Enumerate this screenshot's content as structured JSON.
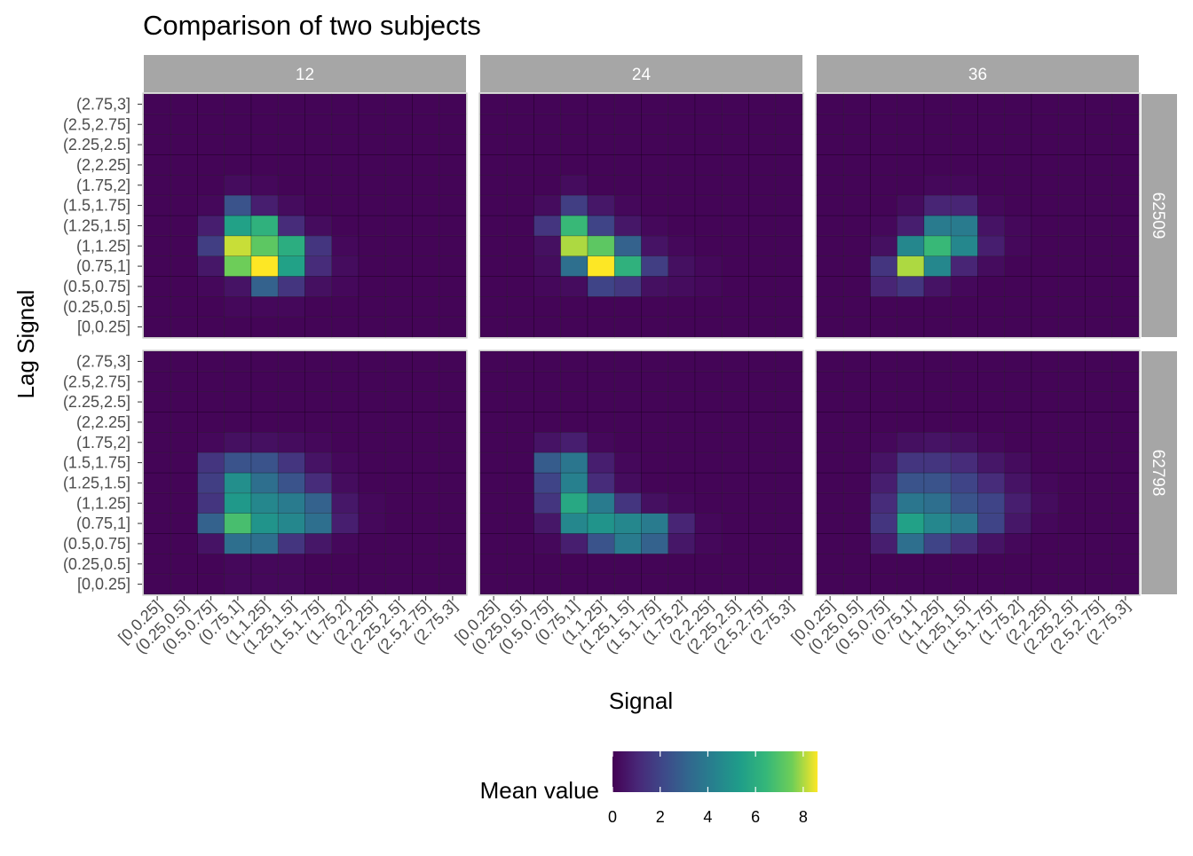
{
  "chart_data": {
    "type": "heatmap",
    "title": "Comparison of two subjects",
    "xlabel": "Signal",
    "ylabel": "Lag Signal",
    "bins": [
      "[0,0.25]",
      "(0.25,0.5]",
      "(0.5,0.75]",
      "(0.75,1]",
      "(1,1.25]",
      "(1.25,1.5]",
      "(1.5,1.75]",
      "(1.75,2]",
      "(2,2.25]",
      "(2.25,2.5]",
      "(2.5,2.75]",
      "(2.75,3]"
    ],
    "col_facets": [
      "12",
      "24",
      "36"
    ],
    "row_facets": [
      "62509",
      "62798"
    ],
    "legend": {
      "title": "Mean value",
      "ticks": [
        0,
        2,
        4,
        6,
        8
      ],
      "range": [
        0,
        8.6
      ],
      "position": "bottom",
      "colormap": "viridis"
    },
    "grid": false,
    "panels": [
      {
        "row": "62509",
        "col": "12",
        "values": [
          [
            0.1,
            0.1,
            0.1,
            0.1,
            0.1,
            0.1,
            0.1,
            0.1,
            0.1,
            0.1,
            0.1,
            0.1
          ],
          [
            0.1,
            0.1,
            0.1,
            0.2,
            0.2,
            0.2,
            0.1,
            0.1,
            0.1,
            0.1,
            0.1,
            0.1
          ],
          [
            0.1,
            0.1,
            0.2,
            0.5,
            3.0,
            1.5,
            0.4,
            0.2,
            0.1,
            0.1,
            0.1,
            0.1
          ],
          [
            0.1,
            0.1,
            0.6,
            7.5,
            8.6,
            5.5,
            1.2,
            0.3,
            0.1,
            0.1,
            0.1,
            0.1
          ],
          [
            0.1,
            0.1,
            1.8,
            8.2,
            7.2,
            6.0,
            1.5,
            0.2,
            0.1,
            0.1,
            0.1,
            0.1
          ],
          [
            0.1,
            0.1,
            0.8,
            5.5,
            6.2,
            1.2,
            0.3,
            0.1,
            0.1,
            0.1,
            0.1,
            0.1
          ],
          [
            0.1,
            0.1,
            0.2,
            2.5,
            0.8,
            0.3,
            0.1,
            0.1,
            0.1,
            0.1,
            0.1,
            0.1
          ],
          [
            0.1,
            0.1,
            0.1,
            0.3,
            0.2,
            0.1,
            0.1,
            0.1,
            0.1,
            0.1,
            0.1,
            0.1
          ],
          [
            0.1,
            0.1,
            0.1,
            0.1,
            0.1,
            0.1,
            0.1,
            0.1,
            0.1,
            0.1,
            0.1,
            0.1
          ],
          [
            0.1,
            0.1,
            0.1,
            0.1,
            0.1,
            0.1,
            0.1,
            0.1,
            0.1,
            0.1,
            0.1,
            0.1
          ],
          [
            0.1,
            0.1,
            0.1,
            0.1,
            0.1,
            0.1,
            0.1,
            0.1,
            0.1,
            0.1,
            0.1,
            0.1
          ],
          [
            0.1,
            0.1,
            0.1,
            0.1,
            0.1,
            0.1,
            0.1,
            0.1,
            0.1,
            0.1,
            0.1,
            0.1
          ]
        ]
      },
      {
        "row": "62509",
        "col": "24",
        "values": [
          [
            0.1,
            0.1,
            0.1,
            0.1,
            0.1,
            0.1,
            0.1,
            0.1,
            0.1,
            0.1,
            0.1,
            0.1
          ],
          [
            0.1,
            0.1,
            0.1,
            0.1,
            0.1,
            0.1,
            0.1,
            0.1,
            0.1,
            0.1,
            0.1,
            0.1
          ],
          [
            0.1,
            0.1,
            0.2,
            0.3,
            2.0,
            1.6,
            0.4,
            0.3,
            0.2,
            0.1,
            0.1,
            0.1
          ],
          [
            0.1,
            0.1,
            0.3,
            3.5,
            8.6,
            6.2,
            1.8,
            0.4,
            0.2,
            0.1,
            0.1,
            0.1
          ],
          [
            0.1,
            0.1,
            0.4,
            8.0,
            7.2,
            3.0,
            0.5,
            0.2,
            0.1,
            0.1,
            0.1,
            0.1
          ],
          [
            0.1,
            0.1,
            1.5,
            6.5,
            2.0,
            0.6,
            0.2,
            0.1,
            0.1,
            0.1,
            0.1,
            0.1
          ],
          [
            0.1,
            0.1,
            0.3,
            1.8,
            0.6,
            0.2,
            0.1,
            0.1,
            0.1,
            0.1,
            0.1,
            0.1
          ],
          [
            0.1,
            0.1,
            0.1,
            0.3,
            0.1,
            0.1,
            0.1,
            0.1,
            0.1,
            0.1,
            0.1,
            0.1
          ],
          [
            0.1,
            0.1,
            0.1,
            0.1,
            0.1,
            0.1,
            0.1,
            0.1,
            0.1,
            0.1,
            0.1,
            0.1
          ],
          [
            0.1,
            0.1,
            0.1,
            0.1,
            0.1,
            0.1,
            0.1,
            0.1,
            0.1,
            0.1,
            0.1,
            0.1
          ],
          [
            0.1,
            0.1,
            0.1,
            0.1,
            0.1,
            0.1,
            0.1,
            0.1,
            0.1,
            0.1,
            0.1,
            0.1
          ],
          [
            0.1,
            0.1,
            0.1,
            0.1,
            0.1,
            0.1,
            0.1,
            0.1,
            0.1,
            0.1,
            0.1,
            0.1
          ]
        ]
      },
      {
        "row": "62509",
        "col": "36",
        "values": [
          [
            0.1,
            0.1,
            0.1,
            0.1,
            0.1,
            0.1,
            0.1,
            0.1,
            0.1,
            0.1,
            0.1,
            0.1
          ],
          [
            0.1,
            0.1,
            0.1,
            0.1,
            0.1,
            0.1,
            0.1,
            0.1,
            0.1,
            0.1,
            0.1,
            0.1
          ],
          [
            0.1,
            0.1,
            1.0,
            1.5,
            0.5,
            0.2,
            0.1,
            0.1,
            0.1,
            0.1,
            0.1,
            0.1
          ],
          [
            0.1,
            0.1,
            1.5,
            8.0,
            4.5,
            1.0,
            0.3,
            0.1,
            0.1,
            0.1,
            0.1,
            0.1
          ],
          [
            0.1,
            0.1,
            0.4,
            4.5,
            6.5,
            4.5,
            0.8,
            0.2,
            0.1,
            0.1,
            0.1,
            0.1
          ],
          [
            0.1,
            0.1,
            0.2,
            0.8,
            4.0,
            4.0,
            0.5,
            0.2,
            0.1,
            0.1,
            0.1,
            0.1
          ],
          [
            0.1,
            0.1,
            0.1,
            0.3,
            1.0,
            1.0,
            0.2,
            0.1,
            0.1,
            0.1,
            0.1,
            0.1
          ],
          [
            0.1,
            0.1,
            0.1,
            0.1,
            0.2,
            0.2,
            0.1,
            0.1,
            0.1,
            0.1,
            0.1,
            0.1
          ],
          [
            0.1,
            0.1,
            0.1,
            0.1,
            0.1,
            0.1,
            0.1,
            0.1,
            0.1,
            0.1,
            0.1,
            0.1
          ],
          [
            0.1,
            0.1,
            0.1,
            0.1,
            0.1,
            0.1,
            0.1,
            0.1,
            0.1,
            0.1,
            0.1,
            0.1
          ],
          [
            0.1,
            0.1,
            0.1,
            0.1,
            0.1,
            0.1,
            0.1,
            0.1,
            0.1,
            0.1,
            0.1,
            0.1
          ],
          [
            0.1,
            0.1,
            0.1,
            0.1,
            0.1,
            0.1,
            0.1,
            0.1,
            0.1,
            0.1,
            0.1,
            0.1
          ]
        ]
      },
      {
        "row": "62798",
        "col": "12",
        "values": [
          [
            0.1,
            0.1,
            0.1,
            0.2,
            0.2,
            0.2,
            0.1,
            0.1,
            0.1,
            0.1,
            0.1,
            0.1
          ],
          [
            0.1,
            0.1,
            0.1,
            0.2,
            0.2,
            0.2,
            0.1,
            0.1,
            0.1,
            0.1,
            0.1,
            0.1
          ],
          [
            0.1,
            0.1,
            0.5,
            3.5,
            3.5,
            1.5,
            0.6,
            0.2,
            0.1,
            0.1,
            0.1,
            0.1
          ],
          [
            0.1,
            0.1,
            3.0,
            6.8,
            5.0,
            4.5,
            3.5,
            0.8,
            0.2,
            0.1,
            0.1,
            0.1
          ],
          [
            0.1,
            0.1,
            1.5,
            5.2,
            4.5,
            4.0,
            3.0,
            0.6,
            0.2,
            0.1,
            0.1,
            0.1
          ],
          [
            0.1,
            0.1,
            1.8,
            4.8,
            3.5,
            2.5,
            1.2,
            0.3,
            0.1,
            0.1,
            0.1,
            0.1
          ],
          [
            0.1,
            0.1,
            1.5,
            2.5,
            2.5,
            1.5,
            0.5,
            0.2,
            0.1,
            0.1,
            0.1,
            0.1
          ],
          [
            0.1,
            0.1,
            0.2,
            0.4,
            0.4,
            0.3,
            0.2,
            0.1,
            0.1,
            0.1,
            0.1,
            0.1
          ],
          [
            0.1,
            0.1,
            0.1,
            0.1,
            0.1,
            0.1,
            0.1,
            0.1,
            0.1,
            0.1,
            0.1,
            0.1
          ],
          [
            0.1,
            0.1,
            0.1,
            0.1,
            0.1,
            0.1,
            0.1,
            0.1,
            0.1,
            0.1,
            0.1,
            0.1
          ],
          [
            0.1,
            0.1,
            0.1,
            0.1,
            0.1,
            0.1,
            0.1,
            0.1,
            0.1,
            0.1,
            0.1,
            0.1
          ],
          [
            0.1,
            0.1,
            0.1,
            0.1,
            0.1,
            0.1,
            0.1,
            0.1,
            0.1,
            0.1,
            0.1,
            0.1
          ]
        ]
      },
      {
        "row": "62798",
        "col": "24",
        "values": [
          [
            0.1,
            0.1,
            0.1,
            0.1,
            0.1,
            0.1,
            0.1,
            0.1,
            0.1,
            0.1,
            0.1,
            0.1
          ],
          [
            0.1,
            0.1,
            0.1,
            0.1,
            0.1,
            0.1,
            0.1,
            0.1,
            0.1,
            0.1,
            0.1,
            0.1
          ],
          [
            0.1,
            0.1,
            0.2,
            0.8,
            2.5,
            4.0,
            3.0,
            0.6,
            0.2,
            0.1,
            0.1,
            0.1
          ],
          [
            0.1,
            0.1,
            0.6,
            4.5,
            5.0,
            4.5,
            4.0,
            1.0,
            0.2,
            0.1,
            0.1,
            0.1
          ],
          [
            0.1,
            0.1,
            1.5,
            5.8,
            4.0,
            1.5,
            0.4,
            0.2,
            0.1,
            0.1,
            0.1,
            0.1
          ],
          [
            0.1,
            0.1,
            2.0,
            4.2,
            1.2,
            0.3,
            0.1,
            0.1,
            0.1,
            0.1,
            0.1,
            0.1
          ],
          [
            0.1,
            0.1,
            2.8,
            3.8,
            0.8,
            0.2,
            0.1,
            0.1,
            0.1,
            0.1,
            0.1,
            0.1
          ],
          [
            0.1,
            0.1,
            0.5,
            0.8,
            0.2,
            0.1,
            0.1,
            0.1,
            0.1,
            0.1,
            0.1,
            0.1
          ],
          [
            0.1,
            0.1,
            0.1,
            0.1,
            0.1,
            0.1,
            0.1,
            0.1,
            0.1,
            0.1,
            0.1,
            0.1
          ],
          [
            0.1,
            0.1,
            0.1,
            0.1,
            0.1,
            0.1,
            0.1,
            0.1,
            0.1,
            0.1,
            0.1,
            0.1
          ],
          [
            0.1,
            0.1,
            0.1,
            0.1,
            0.1,
            0.1,
            0.1,
            0.1,
            0.1,
            0.1,
            0.1,
            0.1
          ],
          [
            0.1,
            0.1,
            0.1,
            0.1,
            0.1,
            0.1,
            0.1,
            0.1,
            0.1,
            0.1,
            0.1,
            0.1
          ]
        ]
      },
      {
        "row": "62798",
        "col": "36",
        "values": [
          [
            0.1,
            0.1,
            0.1,
            0.1,
            0.1,
            0.1,
            0.1,
            0.1,
            0.1,
            0.1,
            0.1,
            0.1
          ],
          [
            0.1,
            0.1,
            0.1,
            0.1,
            0.1,
            0.1,
            0.1,
            0.1,
            0.1,
            0.1,
            0.1,
            0.1
          ],
          [
            0.1,
            0.1,
            0.8,
            3.5,
            2.0,
            1.2,
            0.5,
            0.2,
            0.1,
            0.1,
            0.1,
            0.1
          ],
          [
            0.1,
            0.1,
            1.5,
            5.5,
            4.5,
            3.8,
            2.0,
            0.6,
            0.2,
            0.1,
            0.1,
            0.1
          ],
          [
            0.1,
            0.1,
            1.2,
            3.8,
            3.5,
            2.5,
            2.0,
            0.8,
            0.3,
            0.1,
            0.1,
            0.1
          ],
          [
            0.1,
            0.1,
            0.8,
            2.5,
            2.5,
            2.0,
            1.2,
            0.5,
            0.2,
            0.1,
            0.1,
            0.1
          ],
          [
            0.1,
            0.1,
            0.5,
            1.5,
            1.5,
            1.2,
            0.6,
            0.3,
            0.1,
            0.1,
            0.1,
            0.1
          ],
          [
            0.1,
            0.1,
            0.2,
            0.4,
            0.5,
            0.4,
            0.2,
            0.1,
            0.1,
            0.1,
            0.1,
            0.1
          ],
          [
            0.1,
            0.1,
            0.1,
            0.1,
            0.1,
            0.1,
            0.1,
            0.1,
            0.1,
            0.1,
            0.1,
            0.1
          ],
          [
            0.1,
            0.1,
            0.1,
            0.1,
            0.1,
            0.1,
            0.1,
            0.1,
            0.1,
            0.1,
            0.1,
            0.1
          ],
          [
            0.1,
            0.1,
            0.1,
            0.1,
            0.1,
            0.1,
            0.1,
            0.1,
            0.1,
            0.1,
            0.1,
            0.1
          ],
          [
            0.1,
            0.1,
            0.1,
            0.1,
            0.1,
            0.1,
            0.1,
            0.1,
            0.1,
            0.1,
            0.1,
            0.1
          ]
        ]
      }
    ]
  }
}
